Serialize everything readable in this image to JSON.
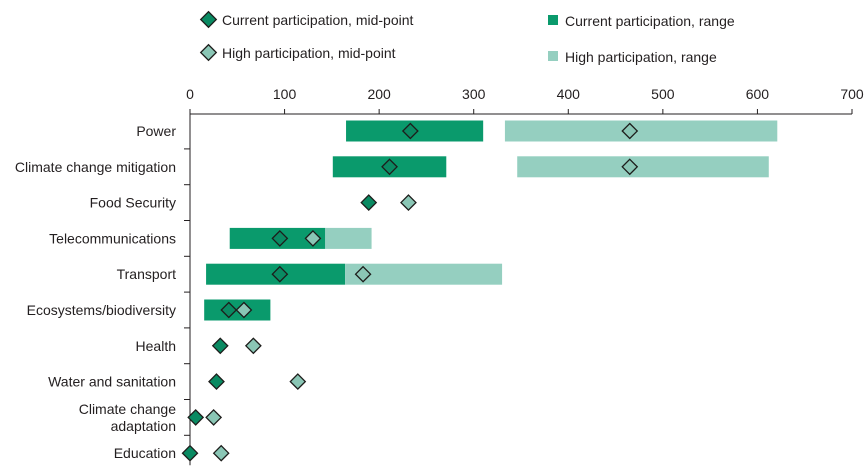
{
  "chart_data": {
    "type": "bar",
    "orientation": "horizontal-range",
    "title": "",
    "xlabel": "",
    "ylabel": "",
    "xlim": [
      0,
      700
    ],
    "xticks": [
      0,
      100,
      200,
      300,
      400,
      500,
      600,
      700
    ],
    "grid": false,
    "legend_position": "top",
    "categories": [
      "Power",
      "Climate change mitigation",
      "Food Security",
      "Telecommunications",
      "Transport",
      "Ecosystems/biodiversity",
      "Health",
      "Water and sanitation",
      "Climate change adaptation",
      "Education"
    ],
    "category_display_lines": [
      [
        "Power"
      ],
      [
        "Climate change mitigation"
      ],
      [
        "Food Security"
      ],
      [
        "Telecommunications"
      ],
      [
        "Transport"
      ],
      [
        "Ecosystems/biodiversity"
      ],
      [
        "Health"
      ],
      [
        "Water and sanitation"
      ],
      [
        "Climate change",
        "adaptation"
      ],
      [
        "Education"
      ]
    ],
    "series": [
      {
        "name": "Current participation, range",
        "kind": "range",
        "color": "#0a9a6c",
        "ranges": [
          [
            165,
            310
          ],
          [
            151,
            271
          ],
          null,
          [
            42,
            143
          ],
          [
            17,
            164
          ],
          [
            15,
            85
          ],
          null,
          null,
          null,
          null
        ]
      },
      {
        "name": "High participation, range",
        "kind": "range",
        "color": "#95cfc0",
        "ranges": [
          [
            333,
            621
          ],
          [
            346,
            612
          ],
          null,
          [
            143,
            192
          ],
          [
            164,
            330
          ],
          null,
          null,
          null,
          null,
          null
        ]
      },
      {
        "name": "Current participation, mid-point",
        "kind": "point",
        "color": "#0a8a62",
        "values": [
          233,
          211,
          189,
          95,
          95,
          41,
          32,
          28,
          6,
          0
        ]
      },
      {
        "name": "High participation, mid-point",
        "kind": "point",
        "color": "#8ac6b5",
        "values": [
          465,
          465,
          231,
          130,
          183,
          57,
          67,
          114,
          25,
          33
        ]
      }
    ]
  },
  "legend": {
    "current_mid": "Current participation, mid-point",
    "high_mid": "High participation, mid-point",
    "current_range": "Current participation, range",
    "high_range": "High participation, range"
  },
  "colors": {
    "current": "#0a9a6c",
    "high": "#95cfc0",
    "current_marker": "#0a8a62",
    "high_marker": "#8ac6b5",
    "marker_stroke": "#1d1d1b"
  }
}
